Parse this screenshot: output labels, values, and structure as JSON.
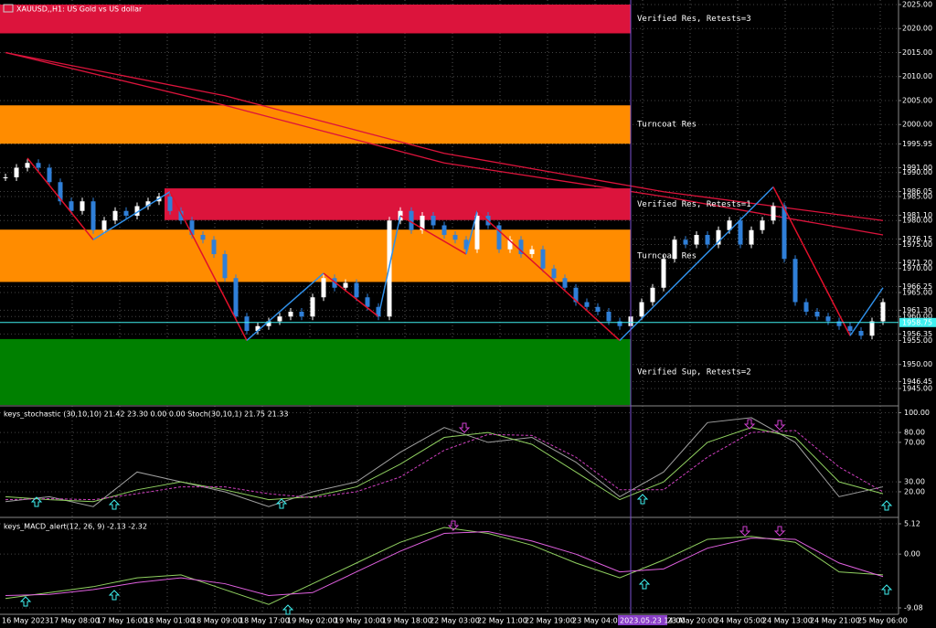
{
  "chart_data": {
    "type": "candlestick",
    "title": "XAUUSD,,H1: US Gold vs US dollar",
    "close": [
      1989,
      1991,
      1992,
      1991,
      1988,
      1984,
      1982,
      1984,
      1978,
      1980,
      1982,
      1981,
      1983,
      1984,
      1985,
      1982,
      1980,
      1977,
      1976,
      1973,
      1968,
      1960,
      1957,
      1958,
      1959,
      1960,
      1961,
      1960,
      1964,
      1968,
      1966,
      1967,
      1964,
      1962,
      1960,
      1980,
      1982,
      1978,
      1981,
      1979,
      1977,
      1976,
      1974,
      1981,
      1979,
      1974,
      1976,
      1973,
      1974,
      1970,
      1968,
      1966,
      1963,
      1962,
      1961,
      1959,
      1958,
      1960,
      1963,
      1966,
      1972,
      1976,
      1975,
      1977,
      1975,
      1978,
      1980,
      1975,
      1978,
      1980,
      1983,
      1972,
      1963,
      1961,
      1960,
      1959,
      1958,
      1957,
      1956,
      1959,
      1963
    ],
    "up_color": "#ffffff",
    "down_color": "#2f7fd8",
    "ylim": [
      1941.57,
      2025.95
    ],
    "yticks": [
      {
        "value": 2025,
        "label": "2025.00"
      },
      {
        "value": 2020,
        "label": "2020.00"
      },
      {
        "value": 2015,
        "label": "2015.00"
      },
      {
        "value": 2010,
        "label": "2010.00"
      },
      {
        "value": 2005,
        "label": "2005.00"
      },
      {
        "value": 2000,
        "label": "2000.00"
      },
      {
        "value": 1995.95,
        "label": "1995.95"
      },
      {
        "value": 1991,
        "label": "1991.00"
      },
      {
        "value": 1990,
        "label": "1990.00"
      },
      {
        "value": 1986.05,
        "label": "1986.05"
      },
      {
        "value": 1985,
        "label": "1985.00"
      },
      {
        "value": 1981.1,
        "label": "1981.10"
      },
      {
        "value": 1980,
        "label": "1980.00"
      },
      {
        "value": 1976.15,
        "label": "1976.15"
      },
      {
        "value": 1975,
        "label": "1975.00"
      },
      {
        "value": 1971.2,
        "label": "1971.20"
      },
      {
        "value": 1970,
        "label": "1970.00"
      },
      {
        "value": 1966.25,
        "label": "1966.25"
      },
      {
        "value": 1965,
        "label": "1965.00"
      },
      {
        "value": 1961.3,
        "label": "1961.30"
      },
      {
        "value": 1960,
        "label": "1960.00"
      },
      {
        "value": 1956.35,
        "label": "1956.35"
      },
      {
        "value": 1955,
        "label": "1955.00"
      },
      {
        "value": 1950,
        "label": "1950.00"
      },
      {
        "value": 1946.45,
        "label": "1946.45"
      },
      {
        "value": 1945,
        "label": "1945.00"
      }
    ],
    "current_price": {
      "value": 1958.75,
      "label": "1958.75"
    },
    "zones": [
      {
        "from": 2025,
        "to": 2019,
        "start_bar": 0,
        "color": "#dc143c",
        "label": "Verified Res, Retests=3"
      },
      {
        "from": 2004,
        "to": 1996,
        "start_bar": 0,
        "color": "#ff8c00",
        "label": "Turncoat Res"
      },
      {
        "from": 1986.7,
        "to": 1980.1,
        "start_bar": 15,
        "color": "#dc143c",
        "label": "Verified Res, Retests=1"
      },
      {
        "from": 1978.1,
        "to": 1967.2,
        "start_bar": 0,
        "color": "#ff8c00",
        "label": "Turncoat Res"
      },
      {
        "from": 1955.3,
        "to": 1941.57,
        "start_bar": 0,
        "color": "#008000",
        "label": "Verified Sup, Retests=2"
      }
    ],
    "moving_averages": [
      {
        "color": "#dc143c",
        "bars": [
          0,
          20,
          40,
          60,
          80
        ],
        "values": [
          2015,
          2006,
          1994,
          1986,
          1980
        ]
      },
      {
        "color": "#dc143c",
        "bars": [
          0,
          20,
          40,
          60,
          80
        ],
        "values": [
          2015,
          2004,
          1992,
          1985,
          1977
        ]
      }
    ],
    "zigzag": {
      "bars": [
        2,
        8,
        15,
        22,
        29,
        34,
        36,
        42,
        43,
        56,
        70,
        77,
        80
      ],
      "values": [
        1993,
        1976,
        1986,
        1955,
        1969,
        1960,
        1981,
        1973,
        1982,
        1955,
        1987,
        1956,
        1966
      ],
      "up_color": "#2f8fe8",
      "down_color": "#e0102a"
    },
    "current_bar": 57,
    "time_labels": [
      "16 May 2023",
      "17 May 08:00",
      "17 May 16:00",
      "18 May 01:00",
      "18 May 09:00",
      "18 May 17:00",
      "19 May 02:00",
      "19 May 10:00",
      "19 May 18:00",
      "22 May 03:00",
      "22 May 11:00",
      "22 May 19:00",
      "23 May 04:00",
      "2023.05.23 14:00",
      "23 May 20:00",
      "24 May 05:00",
      "24 May 13:00",
      "24 May 21:00",
      "25 May 06:00"
    ],
    "stochastic": {
      "label": "keys_stochastic (30,10,10) 21.42 23.30 0.00 0.00 Stoch(30,10,1) 21.75 21.33",
      "ylim": [
        -5,
        106
      ],
      "yticks": [
        {
          "value": 100,
          "label": "100.00"
        },
        {
          "value": 80,
          "label": "80.00"
        },
        {
          "value": 70,
          "label": "70.00"
        },
        {
          "value": 30,
          "label": "30.00"
        },
        {
          "value": 20,
          "label": "20.00"
        }
      ],
      "bars": [
        0,
        4,
        8,
        12,
        16,
        20,
        24,
        28,
        32,
        36,
        40,
        44,
        48,
        52,
        56,
        60,
        64,
        68,
        72,
        76,
        80
      ],
      "series": [
        {
          "color": "#a0a0a0",
          "values": [
            10,
            15,
            5,
            40,
            30,
            20,
            5,
            20,
            30,
            60,
            85,
            70,
            75,
            50,
            15,
            40,
            90,
            95,
            70,
            15,
            25
          ]
        },
        {
          "color": "#90d060",
          "values": [
            15,
            12,
            10,
            22,
            30,
            22,
            12,
            15,
            25,
            48,
            75,
            80,
            68,
            40,
            12,
            30,
            70,
            85,
            75,
            30,
            18
          ]
        },
        {
          "color": "#d040c0",
          "dashed": true,
          "values": [
            12,
            13,
            12,
            18,
            25,
            25,
            18,
            14,
            20,
            35,
            62,
            78,
            77,
            55,
            22,
            22,
            55,
            80,
            82,
            45,
            20
          ]
        }
      ]
    },
    "macd": {
      "label": "keys_MACD_alert(12, 26, 9) -2.13 -2.32",
      "ylim": [
        -10.16,
        5.89
      ],
      "yticks": [
        {
          "value": 5.12,
          "label": "5.12"
        },
        {
          "value": 0,
          "label": "0.00"
        },
        {
          "value": -9.08,
          "label": "-9.08"
        }
      ],
      "bars": [
        0,
        4,
        8,
        12,
        16,
        20,
        24,
        28,
        32,
        36,
        40,
        44,
        48,
        52,
        56,
        60,
        64,
        68,
        72,
        76,
        80
      ],
      "series": [
        {
          "color": "#90d060",
          "values": [
            -7.5,
            -6.5,
            -5.5,
            -4,
            -3.5,
            -6,
            -8.5,
            -5,
            -1.5,
            2,
            4.5,
            3.5,
            1.5,
            -1.5,
            -4,
            -1,
            2.5,
            3,
            2,
            -3,
            -3.5
          ]
        },
        {
          "color": "#e060e0",
          "values": [
            -7,
            -6.8,
            -6,
            -4.8,
            -4,
            -5,
            -7,
            -6.5,
            -3,
            0.5,
            3.5,
            3.8,
            2.2,
            0,
            -3,
            -2.5,
            1,
            2.7,
            2.5,
            -1.5,
            -3.8
          ]
        }
      ]
    }
  }
}
